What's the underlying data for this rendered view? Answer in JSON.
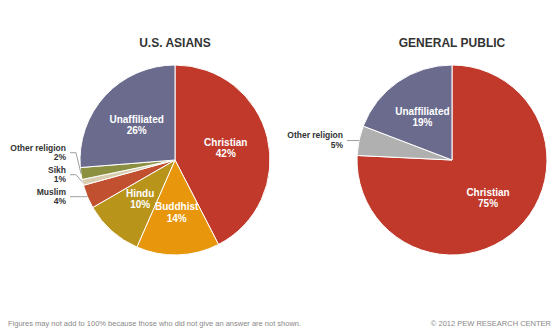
{
  "chart_data": [
    {
      "type": "pie",
      "title": "U.S. ASIANS",
      "categories": [
        "Christian",
        "Buddhist",
        "Hindu",
        "Muslim",
        "Sikh",
        "Other religion",
        "Unaffiliated"
      ],
      "values": [
        42,
        14,
        10,
        4,
        1,
        2,
        26
      ],
      "value_labels": [
        "42%",
        "14%",
        "10%",
        "4%",
        "1%",
        "2%",
        "26%"
      ],
      "colors": [
        "#c0392b",
        "#e8960c",
        "#b8941a",
        "#c05030",
        "#d8cdb0",
        "#8a9040",
        "#6b6b8e"
      ],
      "data_labels": true,
      "annotations": [
        "Figures may not add to 100% because those who did not give an answer are not shown.",
        "© 2012 PEW RESEARCH CENTER"
      ]
    },
    {
      "type": "pie",
      "title": "GENERAL PUBLIC",
      "categories": [
        "Christian",
        "Other religion",
        "Unaffiliated"
      ],
      "values": [
        75,
        5,
        19
      ],
      "value_labels": [
        "75%",
        "5%",
        "19%"
      ],
      "colors": [
        "#c0392b",
        "#b0b0b0",
        "#6b6b8e"
      ],
      "data_labels": true
    }
  ]
}
